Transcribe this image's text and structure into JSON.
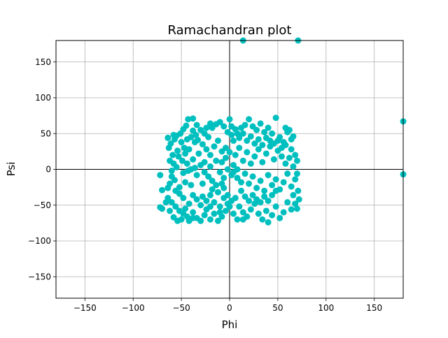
{
  "chart_data": {
    "type": "scatter",
    "title": "Ramachandran plot",
    "xlabel": "Phi",
    "ylabel": "Psi",
    "xlim": [
      -180,
      180
    ],
    "ylim": [
      -180,
      180
    ],
    "xticks": [
      -150,
      -100,
      -50,
      0,
      50,
      100,
      150
    ],
    "yticks": [
      -150,
      -100,
      -50,
      0,
      50,
      100,
      150
    ],
    "xtick_labels": [
      "−150",
      "−100",
      "−50",
      "0",
      "50",
      "100",
      "150"
    ],
    "ytick_labels": [
      "−150",
      "−100",
      "−50",
      "0",
      "50",
      "100",
      "150"
    ],
    "grid": true,
    "zero_lines": true,
    "marker_color": "#00bfbf",
    "series": [
      {
        "points": [
          [
            14,
            180
          ],
          [
            71,
            180
          ],
          [
            180,
            67
          ],
          [
            180,
            -7
          ],
          [
            -72,
            -8
          ],
          [
            -70,
            -29
          ],
          [
            -72,
            -53
          ],
          [
            -70,
            -55
          ],
          [
            -64,
            44
          ],
          [
            -63,
            30
          ],
          [
            -61,
            36
          ],
          [
            -58,
            48
          ],
          [
            -57,
            42
          ],
          [
            -55,
            47
          ],
          [
            -51,
            50
          ],
          [
            -48,
            56
          ],
          [
            -45,
            61
          ],
          [
            -43,
            70
          ],
          [
            -38,
            71
          ],
          [
            -40,
            45
          ],
          [
            -35,
            48
          ],
          [
            -33,
            41
          ],
          [
            -47,
            30
          ],
          [
            -42,
            28
          ],
          [
            -59,
            20
          ],
          [
            -53,
            18
          ],
          [
            -49,
            12
          ],
          [
            -44,
            8
          ],
          [
            -38,
            14
          ],
          [
            -60,
            -2
          ],
          [
            -55,
            3
          ],
          [
            -48,
            -5
          ],
          [
            -43,
            -2
          ],
          [
            -36,
            2
          ],
          [
            -62,
            -20
          ],
          [
            -57,
            -15
          ],
          [
            -52,
            -25
          ],
          [
            -46,
            -18
          ],
          [
            -40,
            -22
          ],
          [
            -64,
            -40
          ],
          [
            -60,
            -46
          ],
          [
            -56,
            -52
          ],
          [
            -52,
            -58
          ],
          [
            -48,
            -62
          ],
          [
            -44,
            -66
          ],
          [
            -58,
            -67
          ],
          [
            -54,
            -72
          ],
          [
            -50,
            -70
          ],
          [
            -46,
            -55
          ],
          [
            -42,
            -48
          ],
          [
            -38,
            -60
          ],
          [
            -34,
            -68
          ],
          [
            -30,
            -72
          ],
          [
            -26,
            -64
          ],
          [
            -30,
            -50
          ],
          [
            -24,
            -56
          ],
          [
            -20,
            -70
          ],
          [
            -16,
            -62
          ],
          [
            -12,
            -72
          ],
          [
            -8,
            -66
          ],
          [
            -4,
            -58
          ],
          [
            -2,
            -48
          ],
          [
            -6,
            -40
          ],
          [
            -10,
            -52
          ],
          [
            -30,
            55
          ],
          [
            -26,
            50
          ],
          [
            -22,
            45
          ],
          [
            -18,
            58
          ],
          [
            -14,
            63
          ],
          [
            -10,
            66
          ],
          [
            -6,
            60
          ],
          [
            -2,
            52
          ],
          [
            2,
            48
          ],
          [
            0,
            70
          ],
          [
            -28,
            35
          ],
          [
            -24,
            28
          ],
          [
            -20,
            20
          ],
          [
            -16,
            32
          ],
          [
            -12,
            40
          ],
          [
            -8,
            25
          ],
          [
            -4,
            30
          ],
          [
            -26,
            10
          ],
          [
            -20,
            4
          ],
          [
            -14,
            12
          ],
          [
            -10,
            -4
          ],
          [
            -6,
            -12
          ],
          [
            -2,
            0
          ],
          [
            2,
            -8
          ],
          [
            -22,
            -10
          ],
          [
            -28,
            -20
          ],
          [
            -18,
            -28
          ],
          [
            -12,
            -32
          ],
          [
            -6,
            -26
          ],
          [
            -2,
            -36
          ],
          [
            4,
            40
          ],
          [
            8,
            50
          ],
          [
            12,
            58
          ],
          [
            16,
            62
          ],
          [
            20,
            70
          ],
          [
            24,
            60
          ],
          [
            28,
            55
          ],
          [
            32,
            64
          ],
          [
            36,
            52
          ],
          [
            40,
            58
          ],
          [
            44,
            50
          ],
          [
            48,
            72
          ],
          [
            52,
            45
          ],
          [
            56,
            38
          ],
          [
            60,
            52
          ],
          [
            64,
            42
          ],
          [
            66,
            46
          ],
          [
            58,
            58
          ],
          [
            62,
            55
          ],
          [
            6,
            20
          ],
          [
            10,
            30
          ],
          [
            14,
            12
          ],
          [
            18,
            24
          ],
          [
            22,
            8
          ],
          [
            26,
            18
          ],
          [
            30,
            28
          ],
          [
            34,
            10
          ],
          [
            38,
            22
          ],
          [
            42,
            32
          ],
          [
            46,
            14
          ],
          [
            50,
            26
          ],
          [
            54,
            18
          ],
          [
            58,
            8
          ],
          [
            62,
            16
          ],
          [
            66,
            4
          ],
          [
            68,
            20
          ],
          [
            70,
            12
          ],
          [
            64,
            28
          ],
          [
            4,
            -4
          ],
          [
            8,
            -12
          ],
          [
            12,
            -18
          ],
          [
            16,
            -6
          ],
          [
            20,
            -20
          ],
          [
            24,
            -10
          ],
          [
            28,
            -26
          ],
          [
            32,
            -16
          ],
          [
            36,
            -30
          ],
          [
            40,
            -8
          ],
          [
            44,
            -22
          ],
          [
            48,
            -14
          ],
          [
            52,
            -28
          ],
          [
            56,
            -18
          ],
          [
            60,
            -6
          ],
          [
            64,
            -24
          ],
          [
            68,
            -14
          ],
          [
            70,
            -6
          ],
          [
            71,
            -30
          ],
          [
            66,
            -36
          ],
          [
            6,
            -40
          ],
          [
            10,
            -52
          ],
          [
            14,
            -60
          ],
          [
            18,
            -66
          ],
          [
            14,
            -70
          ],
          [
            22,
            -56
          ],
          [
            26,
            -48
          ],
          [
            30,
            -62
          ],
          [
            34,
            -70
          ],
          [
            38,
            -58
          ],
          [
            40,
            -74
          ],
          [
            44,
            -64
          ],
          [
            48,
            -52
          ],
          [
            52,
            -68
          ],
          [
            56,
            -60
          ],
          [
            60,
            -46
          ],
          [
            64,
            -56
          ],
          [
            68,
            -48
          ],
          [
            70,
            -55
          ],
          [
            72,
            -42
          ],
          [
            -36,
            38
          ],
          [
            -32,
            22
          ],
          [
            -38,
            -36
          ],
          [
            -34,
            -42
          ],
          [
            -28,
            -38
          ],
          [
            -24,
            -44
          ],
          [
            -20,
            -36
          ],
          [
            -16,
            -46
          ],
          [
            -48,
            -40
          ],
          [
            -52,
            -34
          ],
          [
            -56,
            -30
          ],
          [
            -60,
            -10
          ],
          [
            -64,
            -26
          ],
          [
            -58,
            8
          ],
          [
            -62,
            12
          ],
          [
            -8,
            10
          ],
          [
            -4,
            16
          ],
          [
            0,
            24
          ],
          [
            4,
            6
          ],
          [
            8,
            0
          ],
          [
            12,
            -30
          ],
          [
            16,
            -38
          ],
          [
            20,
            -44
          ],
          [
            24,
            -36
          ],
          [
            28,
            -42
          ],
          [
            32,
            -46
          ],
          [
            36,
            -38
          ],
          [
            40,
            -44
          ],
          [
            44,
            -36
          ],
          [
            48,
            -30
          ],
          [
            2,
            60
          ],
          [
            6,
            56
          ],
          [
            10,
            44
          ],
          [
            14,
            50
          ],
          [
            18,
            40
          ],
          [
            22,
            46
          ],
          [
            26,
            36
          ],
          [
            30,
            42
          ],
          [
            34,
            34
          ],
          [
            38,
            44
          ],
          [
            42,
            40
          ],
          [
            46,
            36
          ],
          [
            50,
            40
          ],
          [
            54,
            30
          ],
          [
            58,
            34
          ],
          [
            -20,
            64
          ],
          [
            -24,
            58
          ],
          [
            -34,
            62
          ],
          [
            -38,
            54
          ],
          [
            -44,
            42
          ],
          [
            -50,
            38
          ],
          [
            -54,
            26
          ],
          [
            -46,
            22
          ],
          [
            -40,
            0
          ],
          [
            -34,
            -8
          ],
          [
            -30,
            6
          ],
          [
            -26,
            -4
          ],
          [
            -18,
            -16
          ],
          [
            -14,
            -22
          ],
          [
            -8,
            -20
          ],
          [
            -66,
            -46
          ],
          [
            -62,
            -58
          ],
          [
            -42,
            -72
          ],
          [
            -38,
            -68
          ],
          [
            -20,
            -52
          ],
          [
            -10,
            -60
          ],
          [
            0,
            -52
          ],
          [
            4,
            -62
          ],
          [
            8,
            -70
          ],
          [
            2,
            -44
          ]
        ]
      }
    ]
  }
}
